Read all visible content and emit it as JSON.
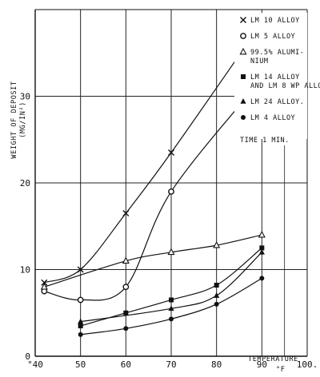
{
  "chart_data": {
    "type": "scatter",
    "ylabel": [
      "WEIGHT OF DEPOSIT",
      "(MG/IN²)"
    ],
    "xlabel": [
      "TEMPERATURE",
      "°F"
    ],
    "xlim": [
      40,
      100
    ],
    "ylim": [
      0,
      40
    ],
    "x_ticks": [
      {
        "v": 40,
        "t": "°40"
      },
      {
        "v": 50,
        "t": "50"
      },
      {
        "v": 60,
        "t": "60"
      },
      {
        "v": 70,
        "t": "70"
      },
      {
        "v": 80,
        "t": "80"
      },
      {
        "v": 90,
        "t": "90"
      },
      {
        "v": 100,
        "t": "100."
      }
    ],
    "y_ticks": [
      {
        "v": 0,
        "t": "0"
      },
      {
        "v": 10,
        "t": "10"
      },
      {
        "v": 20,
        "t": "20"
      },
      {
        "v": 30,
        "t": "30"
      }
    ],
    "legend": {
      "entries": [
        {
          "marker": "x",
          "lines": [
            "LM 10 ALLOY"
          ]
        },
        {
          "marker": "circle-open",
          "lines": [
            "LM 5 ALLOY"
          ]
        },
        {
          "marker": "triangle-open",
          "lines": [
            "99.5% ALUMI-",
            "NIUM"
          ]
        },
        {
          "marker": "square-filled",
          "lines": [
            "LM 14 ALLOY",
            "AND LM 8 WP ALLOY"
          ]
        },
        {
          "marker": "triangle-filled",
          "lines": [
            "LM 24 ALLOY."
          ]
        },
        {
          "marker": "circle-filled",
          "lines": [
            "LM 4 ALLOY"
          ]
        }
      ],
      "note": "TIME 1 MIN."
    },
    "series": [
      {
        "marker": "x",
        "points": [
          [
            42,
            8.5
          ],
          [
            50,
            10
          ],
          [
            60,
            16.5
          ],
          [
            70,
            23.5
          ],
          [
            90,
            38.5
          ]
        ]
      },
      {
        "marker": "circle-open",
        "points": [
          [
            42,
            7.5
          ],
          [
            50,
            6.5
          ],
          [
            60,
            8
          ],
          [
            70,
            19
          ],
          [
            90,
            32
          ]
        ]
      },
      {
        "marker": "triangle-open",
        "points": [
          [
            42,
            8
          ],
          [
            60,
            11
          ],
          [
            70,
            12
          ],
          [
            80,
            12.8
          ],
          [
            90,
            14
          ]
        ]
      },
      {
        "marker": "square-filled",
        "points": [
          [
            50,
            3.5
          ],
          [
            60,
            5
          ],
          [
            70,
            6.5
          ],
          [
            80,
            8.2
          ],
          [
            90,
            12.5
          ]
        ]
      },
      {
        "marker": "triangle-filled",
        "points": [
          [
            50,
            4
          ],
          [
            70,
            5.5
          ],
          [
            80,
            7
          ],
          [
            90,
            12
          ]
        ]
      },
      {
        "marker": "circle-filled",
        "points": [
          [
            50,
            2.5
          ],
          [
            60,
            3.2
          ],
          [
            70,
            4.3
          ],
          [
            80,
            6
          ],
          [
            90,
            9
          ]
        ]
      }
    ],
    "grid": true
  }
}
